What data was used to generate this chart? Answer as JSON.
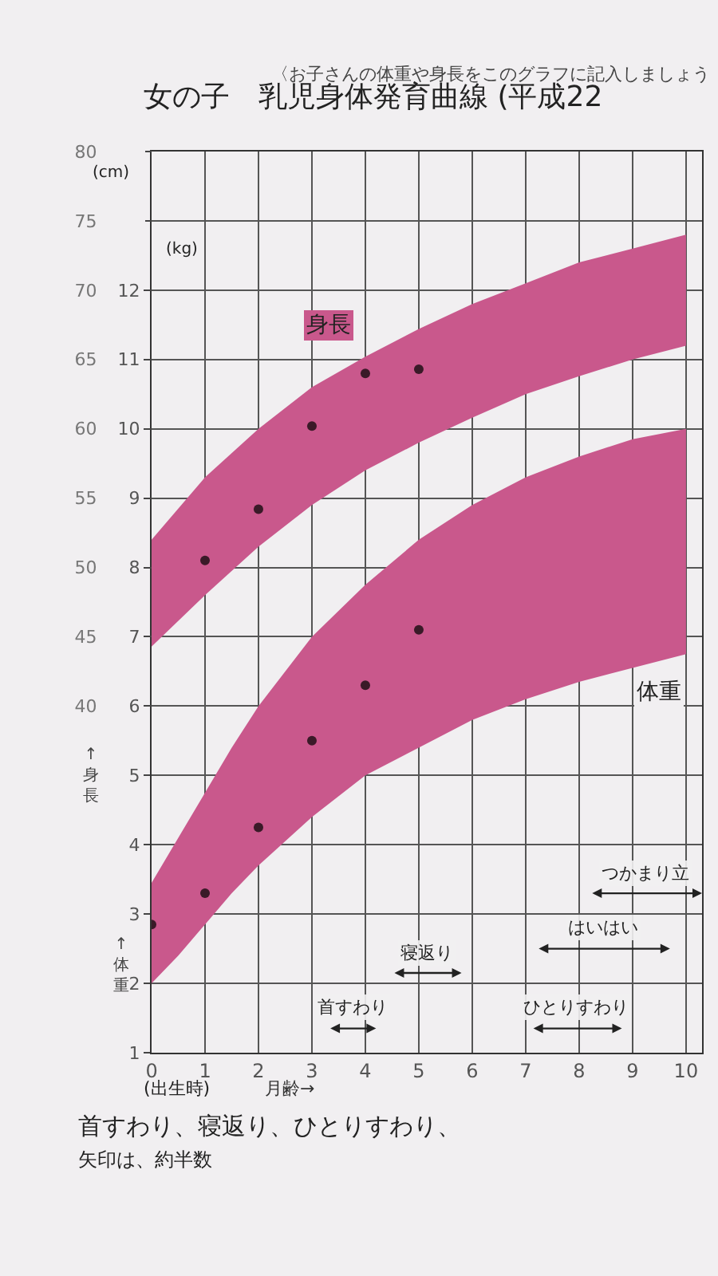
{
  "chart_data": {
    "type": "line",
    "title": "女の子　乳児身体発育曲線 (平成22",
    "subtitle": "〈お子さんの体重や身長をこのグラフに記入しましょう",
    "xlabel": "月齢→",
    "ylabel": "↑体重",
    "y2label": "↑身長",
    "xlim": [
      0,
      10.3
    ],
    "xticks": [
      0,
      1,
      2,
      3,
      4,
      5,
      6,
      7,
      8,
      9,
      10
    ],
    "ylim": [
      1,
      14
    ],
    "yticks": [
      1,
      2,
      3,
      4,
      5,
      6,
      7,
      8,
      9,
      10,
      11,
      12
    ],
    "y2lim": [
      15,
      80
    ],
    "y2ticks": [
      40,
      45,
      50,
      55,
      60,
      65,
      70,
      75,
      80
    ],
    "grid": true,
    "series": [
      {
        "color": "#c9588c",
        "x": [
          0,
          0.5,
          1,
          1.5,
          2,
          3,
          4,
          5,
          6,
          7,
          8,
          9,
          10
        ],
        "values": [
          null,
          null,
          null,
          null,
          null,
          null,
          null,
          null,
          null,
          null,
          null,
          null,
          null
        ],
        "lower": [
          2,
          2.4,
          2.85,
          3.3,
          3.7,
          4.4,
          5,
          5.4,
          5.8,
          6.1,
          6.35,
          6.55,
          6.75
        ],
        "upper": [
          3.45,
          4.1,
          4.75,
          5.4,
          6,
          7,
          7.75,
          8.4,
          8.9,
          9.3,
          9.6,
          9.85,
          10
        ]
      },
      {
        "type": "scatter",
        "color": "#3a1a28",
        "marker": "circle",
        "x": [
          0,
          1,
          2,
          3,
          4,
          5
        ],
        "values": [
          2.85,
          3.3,
          4.25,
          5.5,
          6.3,
          7.1
        ]
      },
      {
        "axis": "y2",
        "color": "#c9588c",
        "x": [
          0,
          1,
          2,
          3,
          4,
          5,
          6,
          7,
          8,
          9,
          10
        ],
        "values": [
          null,
          null,
          null,
          null,
          null,
          null,
          null,
          null,
          null,
          null,
          null
        ],
        "lower": [
          44.3,
          48,
          51.5,
          54.5,
          57,
          59,
          60.8,
          62.5,
          63.8,
          65,
          66
        ],
        "upper": [
          52,
          56.5,
          60,
          63,
          65.2,
          67.2,
          69,
          70.5,
          72,
          73,
          74
        ]
      },
      {
        "type": "scatter",
        "axis": "y2",
        "color": "#3a1a28",
        "marker": "circle",
        "x": [
          1,
          2,
          3,
          4,
          5
        ],
        "values": [
          50.5,
          54.2,
          60.2,
          64,
          64.3
        ]
      }
    ],
    "annotations": [
      "身長",
      "体重",
      "(kg)",
      "(cm)",
      "(出生時)",
      "首すわり、寝返り、ひとりすわり、",
      "矢印は、約半数",
      "首すわり",
      "寝返り",
      "ひとりすわり",
      "はいはい",
      "つかまり立"
    ]
  }
}
